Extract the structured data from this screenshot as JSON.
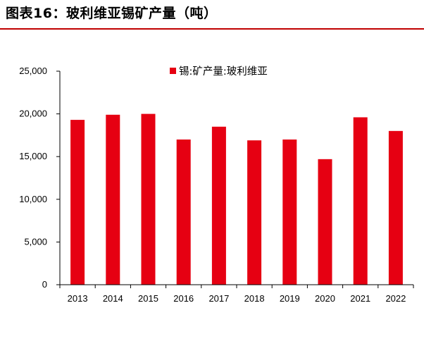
{
  "figure_title": "图表16：玻利维亚锡矿产量（吨）",
  "colors": {
    "accent": "#c00000",
    "bar": "#e60012",
    "axis": "#000000"
  },
  "chart_data": {
    "type": "bar",
    "categories": [
      "2013",
      "2014",
      "2015",
      "2016",
      "2017",
      "2018",
      "2019",
      "2020",
      "2021",
      "2022"
    ],
    "series": [
      {
        "name": "锡:矿产量:玻利维亚",
        "values": [
          19300,
          19900,
          20000,
          17000,
          18500,
          16900,
          17000,
          14700,
          19600,
          18000
        ]
      }
    ],
    "ylim": [
      0,
      25000
    ],
    "yticks": [
      0,
      5000,
      10000,
      15000,
      20000,
      25000
    ],
    "ytick_labels": [
      "0",
      "5,000",
      "10,000",
      "15,000",
      "20,000",
      "25,000"
    ],
    "legend_position": "top-center",
    "grid": false
  }
}
